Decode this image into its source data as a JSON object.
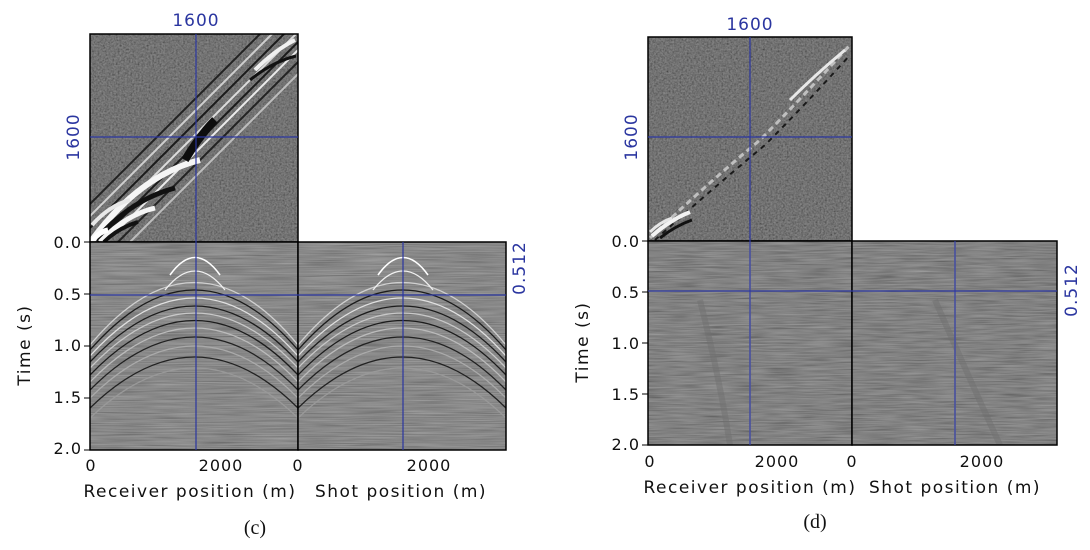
{
  "panels": [
    {
      "caption": "(c)",
      "crosshair_top": "1600",
      "crosshair_left": "1600",
      "crosshair_right": "0.512",
      "time_axis_label": "Time (s)",
      "time_ticks": [
        "0.0",
        "0.5",
        "1.0",
        "1.5",
        "2.0"
      ],
      "receiver_ticks": [
        "0",
        "2000"
      ],
      "shot_ticks": [
        "0",
        "2000"
      ],
      "receiver_label": "Receiver position (m)",
      "shot_label": "Shot position (m)"
    },
    {
      "caption": "(d)",
      "crosshair_top": "1600",
      "crosshair_left": "1600",
      "crosshair_right": "0.512",
      "time_axis_label": "Time (s)",
      "time_ticks": [
        "0.0",
        "0.5",
        "1.0",
        "1.5",
        "2.0"
      ],
      "receiver_ticks": [
        "0",
        "2000"
      ],
      "shot_ticks": [
        "0",
        "2000"
      ],
      "receiver_label": "Receiver position (m)",
      "shot_label": "Shot position (m)"
    }
  ],
  "colors": {
    "crosshair": "#2b36a0",
    "background": "#4a4a4a",
    "frame": "#000000"
  }
}
